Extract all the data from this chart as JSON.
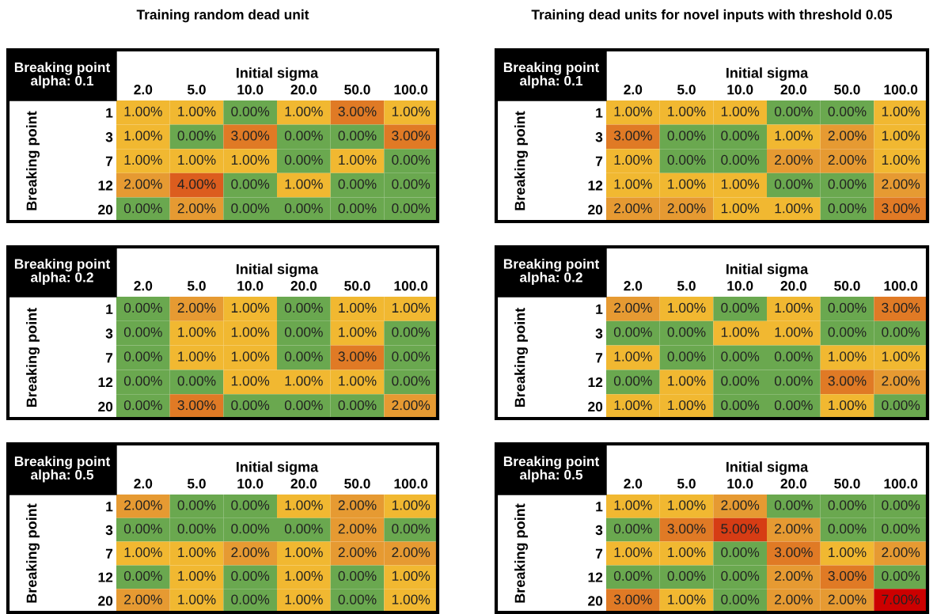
{
  "chart_data": [
    {
      "type": "heatmap",
      "title": "Training random dead unit",
      "xlabel": "Initial sigma",
      "ylabel": "Breaking point",
      "annotations": [
        "Breaking point\nalpha: 0.1"
      ],
      "categories": [
        "2.0",
        "5.0",
        "10.0",
        "20.0",
        "50.0",
        "100.0"
      ],
      "y_categories": [
        "1",
        "3",
        "7",
        "12",
        "20"
      ],
      "cells": [
        [
          1,
          1,
          0,
          1,
          3,
          1
        ],
        [
          1,
          0,
          3,
          0,
          0,
          3
        ],
        [
          1,
          1,
          1,
          0,
          1,
          0
        ],
        [
          2,
          4,
          0,
          1,
          0,
          0
        ],
        [
          0,
          2,
          0,
          0,
          0,
          0
        ]
      ],
      "cell_labels": [
        [
          "1.00%",
          "1.00%",
          "0.00%",
          "1.00%",
          "3.00%",
          "1.00%"
        ],
        [
          "1.00%",
          "0.00%",
          "3.00%",
          "0.00%",
          "0.00%",
          "3.00%"
        ],
        [
          "1.00%",
          "1.00%",
          "1.00%",
          "0.00%",
          "1.00%",
          "0.00%"
        ],
        [
          "2.00%",
          "4.00%",
          "0.00%",
          "1.00%",
          "0.00%",
          "0.00%"
        ],
        [
          "0.00%",
          "2.00%",
          "0.00%",
          "0.00%",
          "0.00%",
          "0.00%"
        ]
      ],
      "colors": [
        "#6aa84f",
        "#f1b831",
        "#e69a32",
        "#e07a25",
        "#dc5d1e",
        "#d63c14",
        "#d11e0a",
        "#cc0000"
      ]
    },
    {
      "type": "heatmap",
      "title": "Training dead units for novel inputs with threshold 0.05",
      "xlabel": "Initial sigma",
      "ylabel": "Breaking point",
      "annotations": [
        "Breaking point\nalpha: 0.1"
      ],
      "categories": [
        "2.0",
        "5.0",
        "10.0",
        "20.0",
        "50.0",
        "100.0"
      ],
      "y_categories": [
        "1",
        "3",
        "7",
        "12",
        "20"
      ],
      "cells": [
        [
          1,
          1,
          1,
          0,
          0,
          1
        ],
        [
          3,
          0,
          0,
          1,
          2,
          1
        ],
        [
          1,
          0,
          0,
          2,
          2,
          1
        ],
        [
          1,
          1,
          1,
          0,
          0,
          2
        ],
        [
          2,
          2,
          1,
          1,
          0,
          3
        ]
      ],
      "cell_labels": [
        [
          "1.00%",
          "1.00%",
          "1.00%",
          "0.00%",
          "0.00%",
          "1.00%"
        ],
        [
          "3.00%",
          "0.00%",
          "0.00%",
          "1.00%",
          "2.00%",
          "1.00%"
        ],
        [
          "1.00%",
          "0.00%",
          "0.00%",
          "2.00%",
          "2.00%",
          "1.00%"
        ],
        [
          "1.00%",
          "1.00%",
          "1.00%",
          "0.00%",
          "0.00%",
          "2.00%"
        ],
        [
          "2.00%",
          "2.00%",
          "1.00%",
          "1.00%",
          "0.00%",
          "3.00%"
        ]
      ],
      "colors": [
        "#6aa84f",
        "#f1b831",
        "#e69a32",
        "#e07a25",
        "#dc5d1e",
        "#d63c14",
        "#d11e0a",
        "#cc0000"
      ]
    },
    {
      "type": "heatmap",
      "xlabel": "Initial sigma",
      "ylabel": "Breaking point",
      "annotations": [
        "Breaking point\nalpha: 0.2"
      ],
      "categories": [
        "2.0",
        "5.0",
        "10.0",
        "20.0",
        "50.0",
        "100.0"
      ],
      "y_categories": [
        "1",
        "3",
        "7",
        "12",
        "20"
      ],
      "cells": [
        [
          0,
          2,
          1,
          0,
          1,
          1
        ],
        [
          0,
          1,
          1,
          0,
          1,
          0
        ],
        [
          0,
          1,
          1,
          0,
          3,
          0
        ],
        [
          0,
          0,
          1,
          1,
          1,
          0
        ],
        [
          0,
          3,
          0,
          0,
          0,
          2
        ]
      ],
      "cell_labels": [
        [
          "0.00%",
          "2.00%",
          "1.00%",
          "0.00%",
          "1.00%",
          "1.00%"
        ],
        [
          "0.00%",
          "1.00%",
          "1.00%",
          "0.00%",
          "1.00%",
          "0.00%"
        ],
        [
          "0.00%",
          "1.00%",
          "1.00%",
          "0.00%",
          "3.00%",
          "0.00%"
        ],
        [
          "0.00%",
          "0.00%",
          "1.00%",
          "1.00%",
          "1.00%",
          "0.00%"
        ],
        [
          "0.00%",
          "3.00%",
          "0.00%",
          "0.00%",
          "0.00%",
          "2.00%"
        ]
      ],
      "colors": [
        "#6aa84f",
        "#f1b831",
        "#e69a32",
        "#e07a25",
        "#dc5d1e",
        "#d63c14",
        "#d11e0a",
        "#cc0000"
      ]
    },
    {
      "type": "heatmap",
      "xlabel": "Initial sigma",
      "ylabel": "Breaking point",
      "annotations": [
        "Breaking point\nalpha: 0.2"
      ],
      "categories": [
        "2.0",
        "5.0",
        "10.0",
        "20.0",
        "50.0",
        "100.0"
      ],
      "y_categories": [
        "1",
        "3",
        "7",
        "12",
        "20"
      ],
      "cells": [
        [
          2,
          1,
          0,
          1,
          0,
          3
        ],
        [
          0,
          0,
          1,
          1,
          0,
          0
        ],
        [
          1,
          0,
          0,
          0,
          1,
          1
        ],
        [
          0,
          1,
          0,
          0,
          3,
          2
        ],
        [
          1,
          1,
          0,
          0,
          1,
          0
        ]
      ],
      "cell_labels": [
        [
          "2.00%",
          "1.00%",
          "0.00%",
          "1.00%",
          "0.00%",
          "3.00%"
        ],
        [
          "0.00%",
          "0.00%",
          "1.00%",
          "1.00%",
          "0.00%",
          "0.00%"
        ],
        [
          "1.00%",
          "0.00%",
          "0.00%",
          "0.00%",
          "1.00%",
          "1.00%"
        ],
        [
          "0.00%",
          "1.00%",
          "0.00%",
          "0.00%",
          "3.00%",
          "2.00%"
        ],
        [
          "1.00%",
          "1.00%",
          "0.00%",
          "0.00%",
          "1.00%",
          "0.00%"
        ]
      ],
      "colors": [
        "#6aa84f",
        "#f1b831",
        "#e69a32",
        "#e07a25",
        "#dc5d1e",
        "#d63c14",
        "#d11e0a",
        "#cc0000"
      ]
    },
    {
      "type": "heatmap",
      "xlabel": "Initial sigma",
      "ylabel": "Breaking point",
      "annotations": [
        "Breaking point\nalpha: 0.5"
      ],
      "categories": [
        "2.0",
        "5.0",
        "10.0",
        "20.0",
        "50.0",
        "100.0"
      ],
      "y_categories": [
        "1",
        "3",
        "7",
        "12",
        "20"
      ],
      "cells": [
        [
          2,
          0,
          0,
          1,
          2,
          1
        ],
        [
          0,
          0,
          0,
          0,
          2,
          0
        ],
        [
          1,
          1,
          2,
          1,
          2,
          2
        ],
        [
          0,
          1,
          0,
          1,
          0,
          1
        ],
        [
          2,
          1,
          0,
          1,
          0,
          1
        ]
      ],
      "cell_labels": [
        [
          "2.00%",
          "0.00%",
          "0.00%",
          "1.00%",
          "2.00%",
          "1.00%"
        ],
        [
          "0.00%",
          "0.00%",
          "0.00%",
          "0.00%",
          "2.00%",
          "0.00%"
        ],
        [
          "1.00%",
          "1.00%",
          "2.00%",
          "1.00%",
          "2.00%",
          "2.00%"
        ],
        [
          "0.00%",
          "1.00%",
          "0.00%",
          "1.00%",
          "0.00%",
          "1.00%"
        ],
        [
          "2.00%",
          "1.00%",
          "0.00%",
          "1.00%",
          "0.00%",
          "1.00%"
        ]
      ],
      "colors": [
        "#6aa84f",
        "#f1b831",
        "#e69a32",
        "#e07a25",
        "#dc5d1e",
        "#d63c14",
        "#d11e0a",
        "#cc0000"
      ]
    },
    {
      "type": "heatmap",
      "xlabel": "Initial sigma",
      "ylabel": "Breaking point",
      "annotations": [
        "Breaking point\nalpha: 0.5"
      ],
      "categories": [
        "2.0",
        "5.0",
        "10.0",
        "20.0",
        "50.0",
        "100.0"
      ],
      "y_categories": [
        "1",
        "3",
        "7",
        "12",
        "20"
      ],
      "cells": [
        [
          1,
          1,
          2,
          0,
          0,
          0
        ],
        [
          0,
          3,
          5,
          2,
          0,
          0
        ],
        [
          1,
          1,
          0,
          3,
          1,
          2
        ],
        [
          0,
          0,
          0,
          2,
          3,
          0
        ],
        [
          3,
          1,
          0,
          2,
          2,
          7
        ]
      ],
      "cell_labels": [
        [
          "1.00%",
          "1.00%",
          "2.00%",
          "0.00%",
          "0.00%",
          "0.00%"
        ],
        [
          "0.00%",
          "3.00%",
          "5.00%",
          "2.00%",
          "0.00%",
          "0.00%"
        ],
        [
          "1.00%",
          "1.00%",
          "0.00%",
          "3.00%",
          "1.00%",
          "2.00%"
        ],
        [
          "0.00%",
          "0.00%",
          "0.00%",
          "2.00%",
          "3.00%",
          "0.00%"
        ],
        [
          "3.00%",
          "1.00%",
          "0.00%",
          "2.00%",
          "2.00%",
          "7.00%"
        ]
      ],
      "colors": [
        "#6aa84f",
        "#f1b831",
        "#e69a32",
        "#e07a25",
        "#dc5d1e",
        "#d63c14",
        "#d11e0a",
        "#cc0000"
      ]
    }
  ]
}
